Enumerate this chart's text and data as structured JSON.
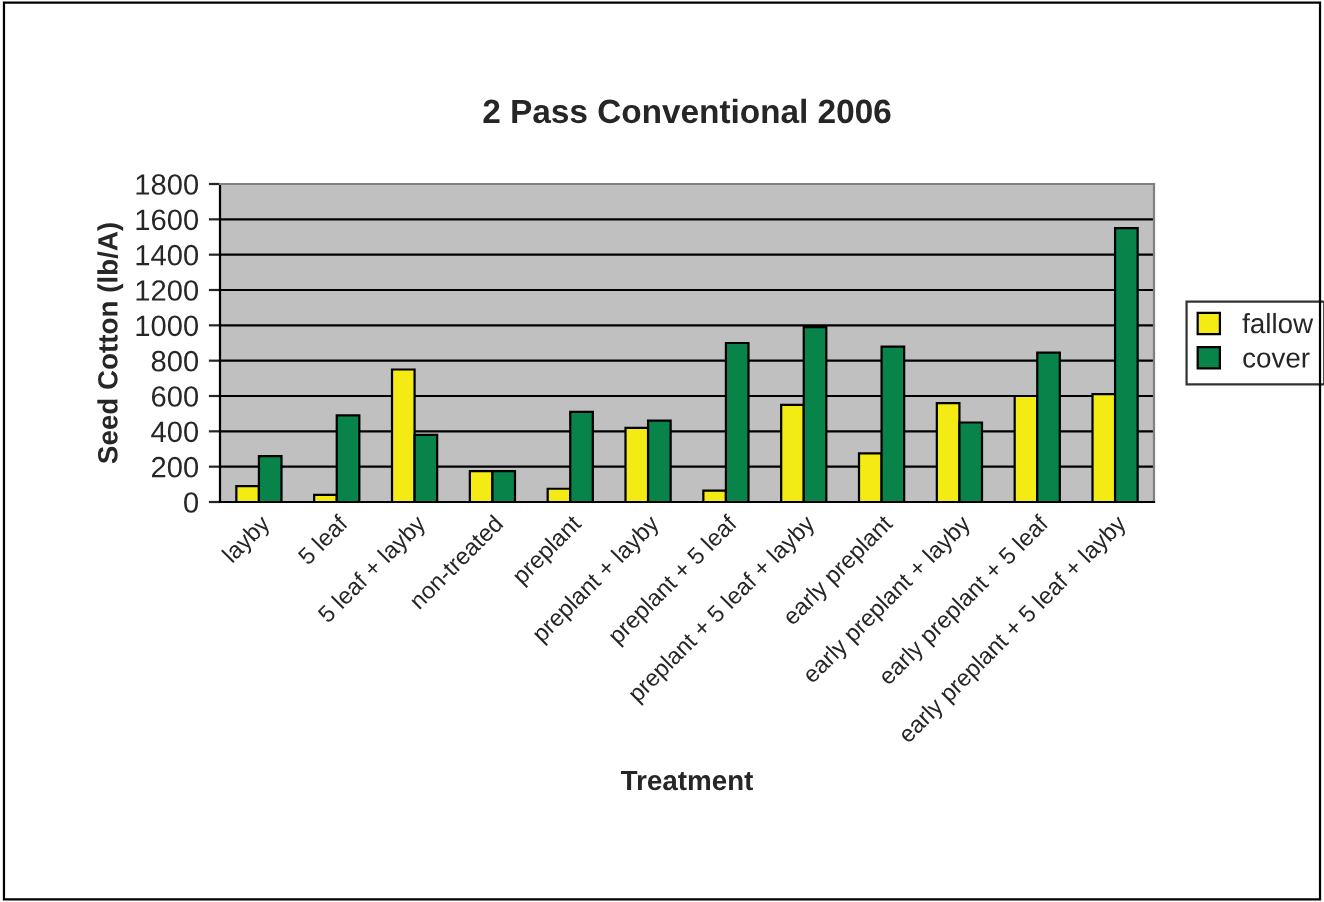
{
  "chart_data": {
    "type": "bar",
    "title": "2 Pass Conventional 2006",
    "xlabel": "Treatment",
    "ylabel": "Seed Cotton (lb/A)",
    "categories": [
      "layby",
      "5 leaf",
      "5 leaf + layby",
      "non-treated",
      "preplant",
      "preplant + layby",
      "preplant + 5 leaf",
      "preplant + 5 leaf + layby",
      "early preplant",
      "early preplant + layby",
      "early preplant + 5 leaf",
      "early preplant + 5 leaf + layby"
    ],
    "series": [
      {
        "name": "fallow",
        "color": "#f5eb14",
        "values": [
          90,
          40,
          750,
          175,
          75,
          420,
          65,
          550,
          275,
          560,
          600,
          610
        ]
      },
      {
        "name": "cover",
        "color": "#08834a",
        "values": [
          260,
          490,
          380,
          175,
          510,
          460,
          900,
          990,
          880,
          450,
          845,
          1550
        ]
      }
    ],
    "ylim": [
      0,
      1800
    ],
    "yticks": [
      0,
      200,
      400,
      600,
      800,
      1000,
      1200,
      1400,
      1600,
      1800
    ],
    "grid": "y",
    "legend": "right"
  }
}
